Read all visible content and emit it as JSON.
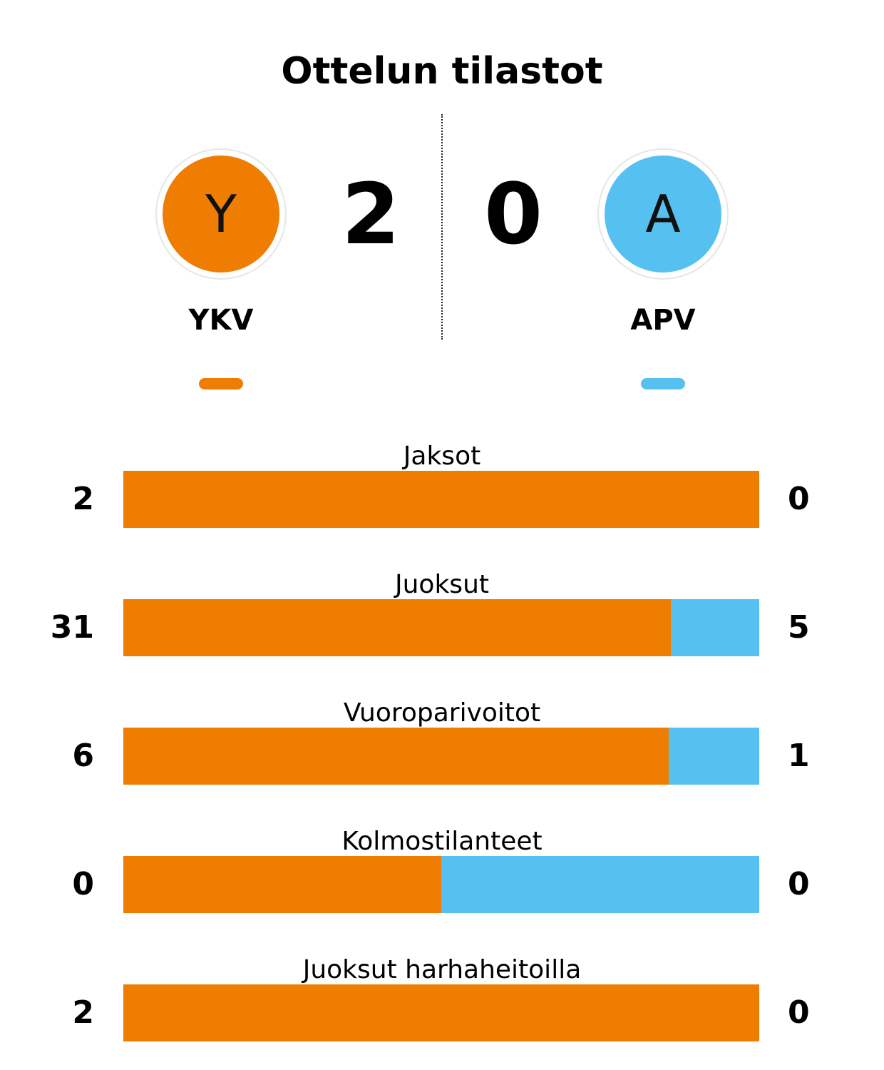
{
  "title": "Ottelun tilastot",
  "colors": {
    "home": "#ef7d02",
    "away": "#56c1f0"
  },
  "home": {
    "logo_letter": "Y",
    "name": "YKV",
    "score": "2"
  },
  "away": {
    "logo_letter": "A",
    "name": "APV",
    "score": "0"
  },
  "chart_data": {
    "type": "bar",
    "orientation": "horizontal-stacked-share",
    "categories": [
      "Jaksot",
      "Juoksut",
      "Vuoroparivoitot",
      "Kolmostilanteet",
      "Juoksut harhaheitoilla"
    ],
    "series": [
      {
        "name": "YKV",
        "values": [
          2,
          31,
          6,
          0,
          2
        ]
      },
      {
        "name": "APV",
        "values": [
          0,
          5,
          1,
          0,
          0
        ]
      }
    ],
    "title": "Ottelun tilastot",
    "xlabel": "",
    "ylabel": ""
  }
}
